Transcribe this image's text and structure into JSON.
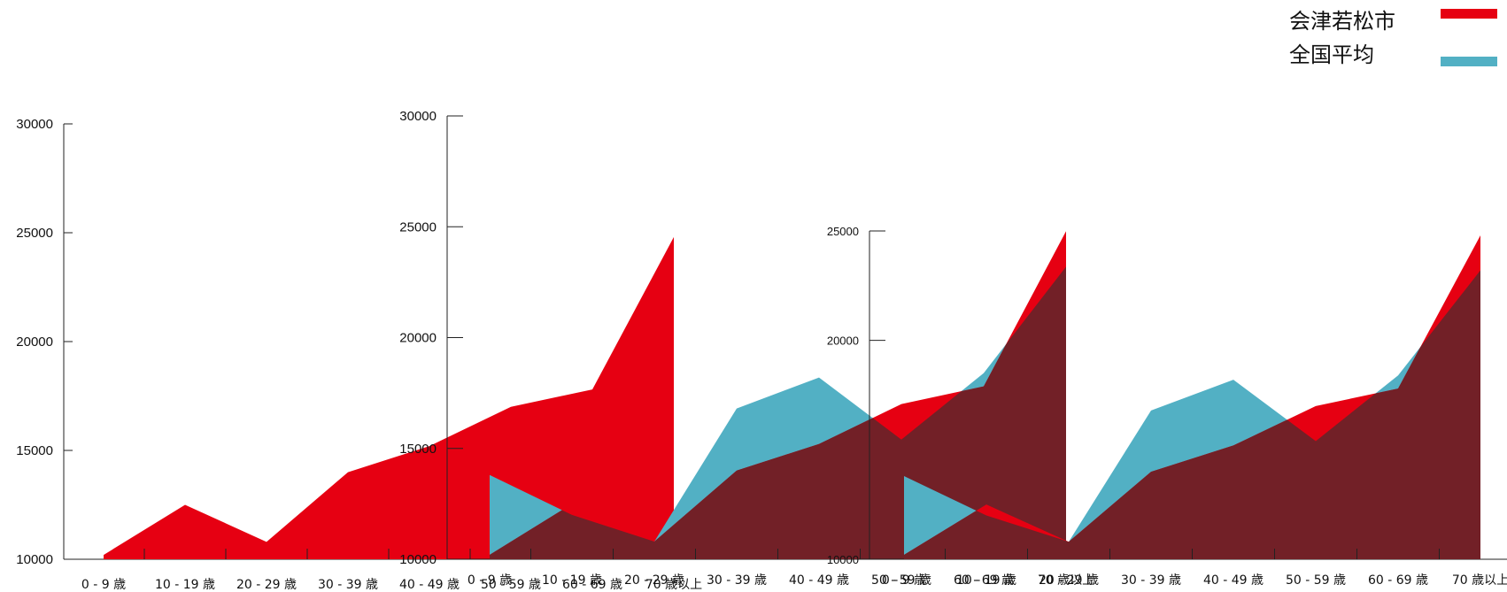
{
  "chart_data": {
    "type": "area",
    "categories": [
      "0 - 9 歳",
      "10 - 19 歳",
      "20 - 29 歳",
      "30 - 39 歳",
      "40 - 49 歳",
      "50 - 59 歳",
      "60 - 69 歳",
      "70 歳以上"
    ],
    "series": [
      {
        "name": "会津若松市",
        "color": "#e60012",
        "values": [
          10200,
          12500,
          10800,
          14000,
          15200,
          17000,
          17800,
          24800
        ]
      },
      {
        "name": "全国平均",
        "color": "#52b0c4",
        "values": [
          13800,
          12000,
          10800,
          16800,
          18200,
          15400,
          18400,
          23200
        ]
      }
    ],
    "overlap_color": "#722027",
    "ylim": [
      10000,
      30000
    ],
    "yticks": [
      10000,
      15000,
      20000,
      25000,
      30000
    ],
    "legend": {
      "position": "top-right"
    }
  }
}
